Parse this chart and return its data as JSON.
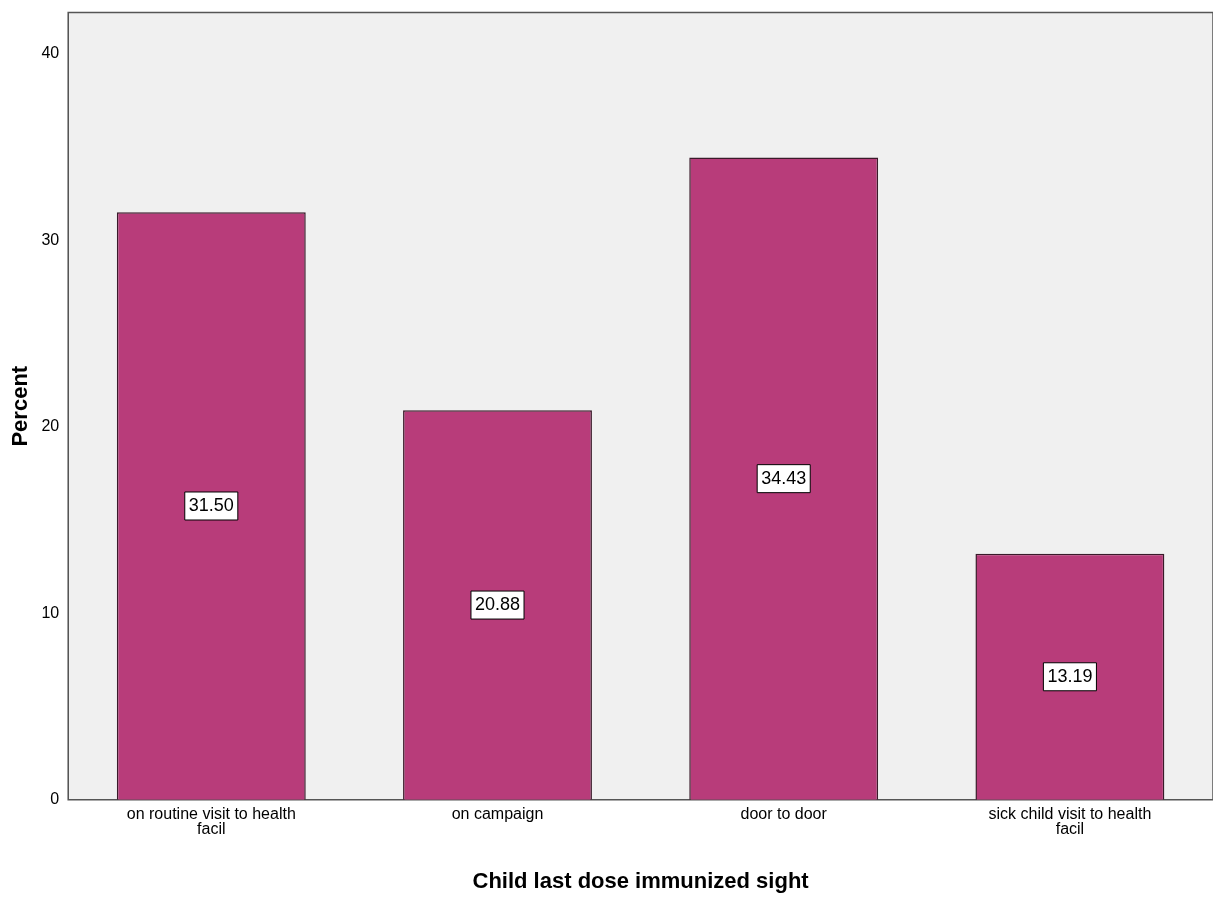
{
  "chart_data": {
    "type": "bar",
    "xlabel": "Child last dose immunized sight",
    "ylabel": "Percent",
    "categories": [
      "on routine visit to health facil",
      "on campaign",
      "door to door",
      "sick child visit to health facil"
    ],
    "values": [
      31.5,
      20.88,
      34.43,
      13.19
    ],
    "value_labels": [
      "31.50",
      "20.88",
      "34.43",
      "13.19"
    ],
    "color": "#b83c7a",
    "ylim": [
      0,
      42.2
    ],
    "yticks": [
      0,
      10,
      20,
      30,
      40
    ],
    "grid": false,
    "legend": false
  }
}
